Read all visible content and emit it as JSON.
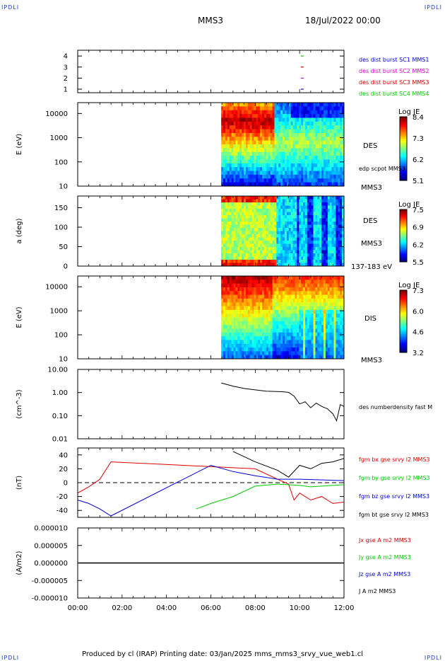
{
  "corners": {
    "tl": "IPDLI",
    "tr": "IPDLI",
    "bl": "IPDLI",
    "br": "IPDLI"
  },
  "header": {
    "spacecraft": "MMS3",
    "date": "18/Jul/2022 00:00"
  },
  "footer": "Produced by cl (IRAP)   Printing date: 03/Jan/2025   mms_mms3_srvy_vue_web1.cl",
  "colors": {
    "blue": "#0000dd",
    "magenta": "#dd00dd",
    "red": "#dd0000",
    "green": "#00cc00",
    "black": "#000000"
  },
  "chart_data": [
    {
      "type": "scatter",
      "panel": "burst-availability",
      "yticks": [
        "4",
        "3",
        "2",
        "1"
      ],
      "series": [
        {
          "name": "des dist burst SC1 MMS1",
          "color": "#0000dd",
          "y": 1,
          "x": [
            "10:07"
          ]
        },
        {
          "name": "des dist burst SC2 MMS2",
          "color": "#dd00dd",
          "y": 2,
          "x": [
            "10:07"
          ]
        },
        {
          "name": "des dist burst SC3 MMS3",
          "color": "#dd0000",
          "y": 3,
          "x": [
            "10:07"
          ]
        },
        {
          "name": "des dist burst SC4 MMS4",
          "color": "#00cc00",
          "y": 4,
          "x": [
            "10:07"
          ]
        }
      ]
    },
    {
      "type": "heatmap",
      "panel": "des-energy-spectrogram",
      "ylabel": "E (eV)",
      "yticks": [
        "10000",
        "1000",
        "100",
        "10"
      ],
      "instrument": "DES",
      "spacecraft": "MMS3",
      "overlay": "edp scpot MMS3",
      "colorbar": {
        "title": "Log JE",
        "ticks": [
          "8.4",
          "7.3",
          "6.2",
          "5.1"
        ]
      },
      "data_start": "06:28"
    },
    {
      "type": "heatmap",
      "panel": "des-pitch-angle",
      "ylabel": "a (deg)",
      "yticks": [
        "150",
        "100",
        "50",
        "0"
      ],
      "instrument": "DES",
      "spacecraft": "MMS3",
      "energy_range": "137-183 eV",
      "colorbar": {
        "title": "Log JE",
        "ticks": [
          "7.5",
          "6.9",
          "6.2",
          "5.5"
        ]
      },
      "data_start": "06:28"
    },
    {
      "type": "heatmap",
      "panel": "dis-energy-spectrogram",
      "ylabel": "E (eV)",
      "yticks": [
        "10000",
        "1000",
        "100",
        "10"
      ],
      "instrument": "DIS",
      "spacecraft": "MMS3",
      "colorbar": {
        "title": "Log JE",
        "ticks": [
          "7.3",
          "6.0",
          "4.6",
          "3.2"
        ]
      },
      "data_start": "06:28"
    },
    {
      "type": "line",
      "panel": "density",
      "ylabel": "(cm^-3)",
      "yticks": [
        "10.00",
        "1.00",
        "0.10",
        "0.01"
      ],
      "yscale": "log",
      "ylim": [
        0.01,
        10
      ],
      "series": [
        {
          "name": "des numberdensity fast M",
          "color": "#000000",
          "x": [
            "06:28",
            "07:00",
            "07:30",
            "08:00",
            "08:30",
            "09:00",
            "09:15",
            "09:30",
            "09:45",
            "10:00",
            "10:15",
            "10:30",
            "10:45",
            "11:00",
            "11:15",
            "11:30",
            "11:40",
            "11:50",
            "12:00"
          ],
          "y": [
            2.6,
            1.9,
            1.5,
            1.3,
            1.15,
            1.1,
            1.08,
            1.02,
            0.7,
            0.32,
            0.4,
            0.22,
            0.35,
            0.25,
            0.2,
            0.12,
            0.06,
            0.3,
            0.25
          ]
        }
      ]
    },
    {
      "type": "line",
      "panel": "magnetic-field",
      "ylabel": "(nT)",
      "yticks": [
        "40",
        "20",
        "0",
        "-20",
        "-40"
      ],
      "ylim": [
        -50,
        50
      ],
      "series": [
        {
          "name": "fgm bx gse srvy l2 MMS3",
          "color": "#dd0000",
          "x": [
            "00:00",
            "00:30",
            "01:00",
            "01:30",
            "08:00",
            "09:00",
            "09:30",
            "09:45",
            "10:00",
            "10:30",
            "11:00",
            "11:30",
            "12:00"
          ],
          "y": [
            -15,
            -6,
            5,
            30,
            20,
            5,
            -2,
            -25,
            -15,
            -25,
            -20,
            -30,
            -28
          ]
        },
        {
          "name": "fgm by gse srvy l2 MMS3",
          "color": "#00cc00",
          "x": [
            "05:20",
            "06:00",
            "07:00",
            "08:00",
            "09:00",
            "10:00",
            "10:30",
            "11:00",
            "11:30",
            "12:00"
          ],
          "y": [
            -38,
            -30,
            -20,
            -5,
            -2,
            -4,
            -6,
            -5,
            -4,
            -3
          ]
        },
        {
          "name": "fgm bz gse srvy l2 MMS3",
          "color": "#0000dd",
          "x": [
            "00:00",
            "00:30",
            "01:00",
            "01:30",
            "06:00",
            "07:00",
            "08:00",
            "09:00",
            "10:00",
            "11:00",
            "12:00"
          ],
          "y": [
            -25,
            -30,
            -38,
            -48,
            25,
            16,
            10,
            5,
            5,
            4,
            3
          ]
        },
        {
          "name": "fgm bt gse srvy l2 MMS3",
          "color": "#000000",
          "x": [
            "07:00",
            "08:00",
            "09:00",
            "09:30",
            "10:00",
            "10:30",
            "11:00",
            "11:30",
            "12:00"
          ],
          "y": [
            45,
            30,
            18,
            8,
            25,
            20,
            28,
            30,
            35
          ]
        }
      ]
    },
    {
      "type": "line",
      "panel": "current-density",
      "ylabel": "(A/m2)",
      "yticks": [
        "0.000010",
        "0.000005",
        "0.000000",
        "-0.000005",
        "-0.000010"
      ],
      "ylim": [
        -1e-05,
        1e-05
      ],
      "series": [
        {
          "name": "Jx gse A m2 MMS3",
          "color": "#dd0000"
        },
        {
          "name": "Jy gse A m2 MMS3",
          "color": "#00cc00"
        },
        {
          "name": "Jz gse A m2 MMS3",
          "color": "#0000dd"
        },
        {
          "name": "J A m2 MMS3",
          "color": "#000000"
        }
      ]
    }
  ],
  "xaxis": {
    "ticks": [
      "00:00",
      "02:00",
      "04:00",
      "06:00",
      "08:00",
      "10:00",
      "12:00"
    ]
  }
}
